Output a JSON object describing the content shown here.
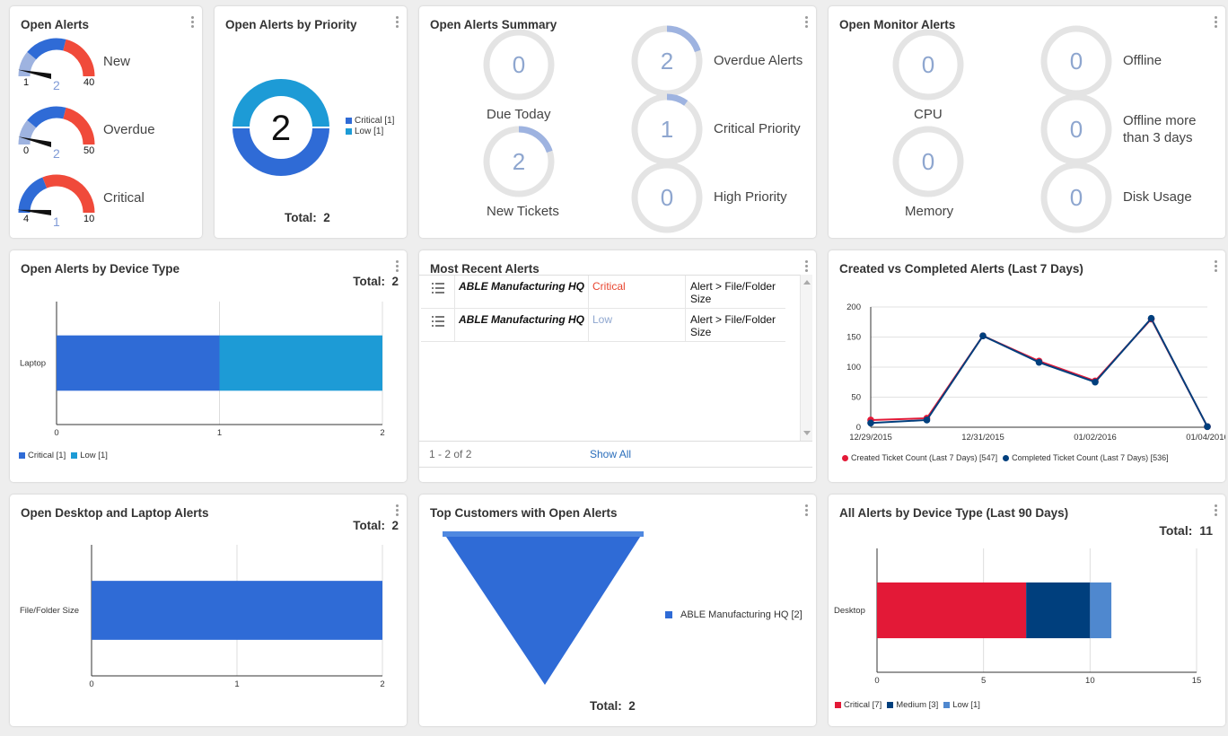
{
  "colors": {
    "blue": "#2f6bd6",
    "light_blue": "#1d9bd6",
    "red": "#f04a3a",
    "gauge_light": "#9eb3e0",
    "ring_grey": "#e4e4e4",
    "ring_accent": "#9eb3e0",
    "crimson": "#e31937",
    "navy": "#003f7d",
    "steel": "#4f88cf"
  },
  "open_alerts": {
    "title": "Open Alerts",
    "gauges": [
      {
        "label": "New",
        "min": "1",
        "value": "2",
        "max": "40",
        "level": 0.03
      },
      {
        "label": "Overdue",
        "min": "0",
        "value": "2",
        "max": "50",
        "level": 0.04
      },
      {
        "label": "Critical",
        "min": "4",
        "value": "1",
        "max": "10",
        "level": 0.0
      }
    ]
  },
  "priority": {
    "title": "Open Alerts by Priority",
    "center": "2",
    "legend": [
      "Critical [1]",
      "Low [1]"
    ],
    "total_label": "Total:",
    "total_value": "2"
  },
  "summary": {
    "title": "Open Alerts Summary",
    "left": [
      {
        "value": "0",
        "label": "Due Today",
        "fill": 0
      },
      {
        "value": "2",
        "label": "New Tickets",
        "fill": 0.2
      }
    ],
    "right": [
      {
        "value": "2",
        "label": "Overdue Alerts",
        "fill": 0.2
      },
      {
        "value": "1",
        "label": "Critical Priority",
        "fill": 0.1
      },
      {
        "value": "0",
        "label": "High Priority",
        "fill": 0
      }
    ]
  },
  "monitor": {
    "title": "Open Monitor Alerts",
    "left": [
      {
        "value": "0",
        "label": "CPU"
      },
      {
        "value": "0",
        "label": "Memory"
      }
    ],
    "right": [
      {
        "value": "0",
        "label": "Offline"
      },
      {
        "value": "0",
        "label_line1": "Offline more",
        "label_line2": "than 3 days"
      },
      {
        "value": "0",
        "label": "Disk Usage"
      }
    ]
  },
  "device_type": {
    "title": "Open Alerts by Device Type",
    "total_label": "Total:",
    "total_value": "2",
    "legend": [
      "Critical [1]",
      "Low [1]"
    ]
  },
  "recent": {
    "title": "Most Recent Alerts",
    "rows": [
      {
        "customer": "ABLE Manufacturing HQ",
        "priority": "Critical",
        "type_line1": "Alert > File/Folder",
        "type_line2": "Size"
      },
      {
        "customer": "ABLE Manufacturing HQ",
        "priority": "Low",
        "type_line1": "Alert > File/Folder",
        "type_line2": "Size"
      }
    ],
    "pager": "1 - 2 of 2",
    "show_all": "Show All"
  },
  "created_completed": {
    "title": "Created vs Completed Alerts (Last 7 Days)",
    "legend": [
      "Created Ticket Count (Last 7 Days) [547]",
      "Completed Ticket Count (Last 7 Days) [536]"
    ]
  },
  "desktop_laptop": {
    "title": "Open Desktop and Laptop Alerts",
    "total_label": "Total:",
    "total_value": "2"
  },
  "top_customers": {
    "title": "Top Customers with Open Alerts",
    "legend": "ABLE Manufacturing HQ [2]",
    "total_label": "Total:",
    "total_value": "2"
  },
  "all_alerts": {
    "title": "All Alerts by Device Type (Last 90 Days)",
    "total_label": "Total:",
    "total_value": "11",
    "legend": [
      "Critical [7]",
      "Medium [3]",
      "Low [1]"
    ]
  },
  "chart_data": [
    {
      "type": "pie",
      "title": "Open Alerts by Priority",
      "categories": [
        "Critical",
        "Low"
      ],
      "values": [
        1,
        1
      ],
      "center_label": "2"
    },
    {
      "type": "bar",
      "orientation": "horizontal",
      "stacked": true,
      "title": "Open Alerts by Device Type",
      "categories": [
        "Laptop"
      ],
      "series": [
        {
          "name": "Critical",
          "values": [
            1
          ]
        },
        {
          "name": "Low",
          "values": [
            1
          ]
        }
      ],
      "xlim": [
        0,
        2
      ],
      "xticks": [
        "0",
        "1",
        "2"
      ],
      "legend": "bottom-left",
      "grid": true
    },
    {
      "type": "line",
      "title": "Created vs Completed Alerts (Last 7 Days)",
      "x": [
        "12/29/2015",
        "12/30/2015",
        "12/31/2015",
        "01/01/2016",
        "01/02/2016",
        "01/03/2016",
        "01/04/2016"
      ],
      "xticks": [
        "12/29/2015",
        "12/31/2015",
        "01/02/2016",
        "01/04/2016"
      ],
      "series": [
        {
          "name": "Created Ticket Count (Last 7 Days) [547]",
          "values": [
            12,
            15,
            152,
            110,
            77,
            180,
            1
          ]
        },
        {
          "name": "Completed Ticket Count (Last 7 Days) [536]",
          "values": [
            7,
            12,
            152,
            108,
            75,
            181,
            1
          ]
        }
      ],
      "ylim": [
        0,
        200
      ],
      "yticks": [
        "0",
        "50",
        "100",
        "150",
        "200"
      ],
      "legend": "bottom-left",
      "grid": true
    },
    {
      "type": "bar",
      "orientation": "horizontal",
      "title": "Open Desktop and Laptop Alerts",
      "categories": [
        "File/Folder Size"
      ],
      "values": [
        2
      ],
      "xlim": [
        0,
        2
      ],
      "xticks": [
        "0",
        "1",
        "2"
      ],
      "grid": true
    },
    {
      "type": "funnel",
      "title": "Top Customers with Open Alerts",
      "categories": [
        "ABLE Manufacturing HQ"
      ],
      "values": [
        2
      ],
      "legend": "right"
    },
    {
      "type": "bar",
      "orientation": "horizontal",
      "stacked": true,
      "title": "All Alerts by Device Type (Last 90 Days)",
      "categories": [
        "Desktop"
      ],
      "series": [
        {
          "name": "Critical",
          "values": [
            7
          ]
        },
        {
          "name": "Medium",
          "values": [
            3
          ]
        },
        {
          "name": "Low",
          "values": [
            1
          ]
        }
      ],
      "xlim": [
        0,
        15
      ],
      "xticks": [
        "0",
        "5",
        "10",
        "15"
      ],
      "legend": "bottom-left",
      "grid": true
    }
  ]
}
